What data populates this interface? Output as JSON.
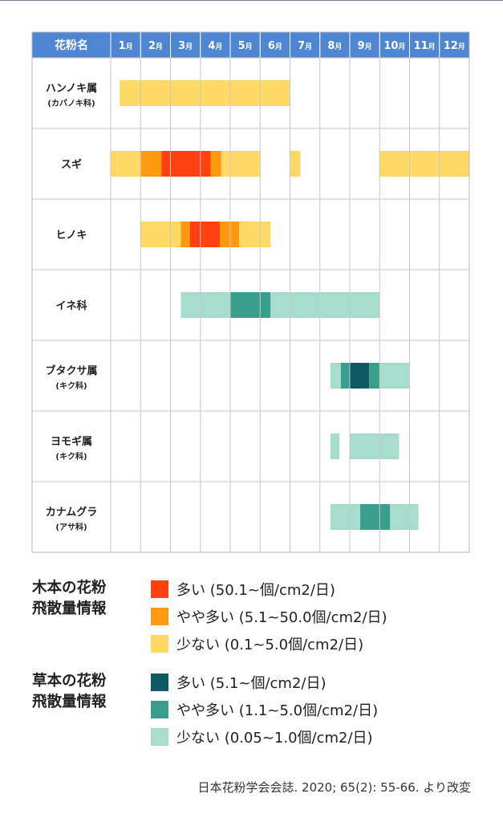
{
  "chart_data": {
    "type": "gantt-heatmap",
    "header": {
      "first_col": "花粉名",
      "months": [
        {
          "num": "1",
          "unit": "月"
        },
        {
          "num": "2",
          "unit": "月"
        },
        {
          "num": "3",
          "unit": "月"
        },
        {
          "num": "4",
          "unit": "月"
        },
        {
          "num": "5",
          "unit": "月"
        },
        {
          "num": "6",
          "unit": "月"
        },
        {
          "num": "7",
          "unit": "月"
        },
        {
          "num": "8",
          "unit": "月"
        },
        {
          "num": "9",
          "unit": "月"
        },
        {
          "num": "10",
          "unit": "月"
        },
        {
          "num": "11",
          "unit": "月"
        },
        {
          "num": "12",
          "unit": "月"
        }
      ]
    },
    "colors": {
      "tree_high": "#FF4010",
      "tree_mid": "#FF9A10",
      "tree_low": "#FFD966",
      "grass_high": "#0D5A64",
      "grass_mid": "#3A9E8C",
      "grass_low": "#A6DDCD",
      "header_bg": "#4E86D4"
    },
    "rows": [
      {
        "name": "ハンノキ属",
        "sub": "(カバノキ科)",
        "segments": [
          {
            "start": 1.3,
            "end": 7.0,
            "level": "tree_low"
          }
        ]
      },
      {
        "name": "スギ",
        "sub": "",
        "segments": [
          {
            "start": 1.0,
            "end": 2.0,
            "level": "tree_low"
          },
          {
            "start": 2.0,
            "end": 2.7,
            "level": "tree_mid"
          },
          {
            "start": 2.7,
            "end": 4.35,
            "level": "tree_high"
          },
          {
            "start": 4.35,
            "end": 4.7,
            "level": "tree_mid"
          },
          {
            "start": 4.7,
            "end": 6.0,
            "level": "tree_low"
          },
          {
            "start": 7.0,
            "end": 7.35,
            "level": "tree_low"
          },
          {
            "start": 10.0,
            "end": 13.0,
            "level": "tree_low"
          }
        ]
      },
      {
        "name": "ヒノキ",
        "sub": "",
        "segments": [
          {
            "start": 2.0,
            "end": 3.35,
            "level": "tree_low"
          },
          {
            "start": 3.35,
            "end": 3.65,
            "level": "tree_mid"
          },
          {
            "start": 3.65,
            "end": 4.65,
            "level": "tree_high"
          },
          {
            "start": 4.65,
            "end": 5.3,
            "level": "tree_mid"
          },
          {
            "start": 5.3,
            "end": 6.35,
            "level": "tree_low"
          }
        ]
      },
      {
        "name": "イネ科",
        "sub": "",
        "segments": [
          {
            "start": 3.35,
            "end": 5.0,
            "level": "grass_low"
          },
          {
            "start": 5.0,
            "end": 6.35,
            "level": "grass_mid"
          },
          {
            "start": 6.35,
            "end": 10.0,
            "level": "grass_low"
          }
        ]
      },
      {
        "name": "ブタクサ属",
        "sub": "(キク科)",
        "segments": [
          {
            "start": 8.35,
            "end": 8.7,
            "level": "grass_low"
          },
          {
            "start": 8.7,
            "end": 9.0,
            "level": "grass_mid"
          },
          {
            "start": 9.0,
            "end": 9.65,
            "level": "grass_high"
          },
          {
            "start": 9.65,
            "end": 10.0,
            "level": "grass_mid"
          },
          {
            "start": 10.0,
            "end": 11.0,
            "level": "grass_low"
          }
        ]
      },
      {
        "name": "ヨモギ属",
        "sub": "(キク科)",
        "segments": [
          {
            "start": 8.35,
            "end": 8.65,
            "level": "grass_low"
          },
          {
            "start": 9.0,
            "end": 10.65,
            "level": "grass_low"
          }
        ]
      },
      {
        "name": "カナムグラ",
        "sub": "(アサ科)",
        "segments": [
          {
            "start": 8.35,
            "end": 9.35,
            "level": "grass_low"
          },
          {
            "start": 9.35,
            "end": 10.35,
            "level": "grass_mid"
          },
          {
            "start": 10.35,
            "end": 11.3,
            "level": "grass_low"
          }
        ]
      }
    ]
  },
  "legend": {
    "tree": {
      "title_line1": "木本の花粉",
      "title_line2": "飛散量情報",
      "items": [
        {
          "label": "多い (50.1~個/cm2/日)",
          "color": "#FF4010"
        },
        {
          "label": "やや多い (5.1~50.0個/cm2/日)",
          "color": "#FF9A10"
        },
        {
          "label": "少ない (0.1~5.0個/cm2/日)",
          "color": "#FFD966"
        }
      ]
    },
    "grass": {
      "title_line1": "草本の花粉",
      "title_line2": "飛散量情報",
      "items": [
        {
          "label": "多い (5.1~個/cm2/日)",
          "color": "#0D5A64"
        },
        {
          "label": "やや多い (1.1~5.0個/cm2/日)",
          "color": "#3A9E8C"
        },
        {
          "label": "少ない (0.05~1.0個/cm2/日)",
          "color": "#A6DDCD"
        }
      ]
    }
  },
  "source": "日本花粉学会会誌. 2020; 65(2): 55-66. より改変"
}
